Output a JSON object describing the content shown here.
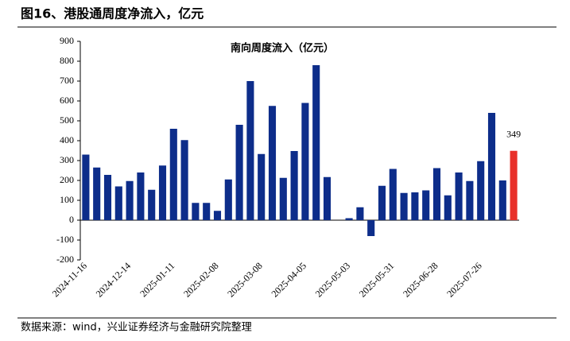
{
  "header": {
    "title": "图16、港股通周度净流入，亿元"
  },
  "chart_data": {
    "type": "bar",
    "title": "南向周度流入（亿元）",
    "categories": [
      "2024-11-16",
      null,
      null,
      null,
      "2024-12-14",
      null,
      null,
      null,
      "2025-01-11",
      null,
      null,
      null,
      "2025-02-08",
      null,
      null,
      null,
      "2025-03-08",
      null,
      null,
      null,
      "2025-04-05",
      null,
      null,
      null,
      "2025-05-03",
      null,
      null,
      null,
      "2025-05-31",
      null,
      null,
      null,
      "2025-06-28",
      null,
      null,
      null,
      "2025-07-26",
      null,
      null,
      null
    ],
    "values": [
      330,
      265,
      228,
      170,
      197,
      240,
      153,
      275,
      460,
      403,
      87,
      87,
      47,
      205,
      480,
      700,
      333,
      575,
      213,
      348,
      590,
      780,
      217,
      null,
      10,
      65,
      -80,
      173,
      258,
      137,
      140,
      150,
      262,
      125,
      240,
      197,
      297,
      540,
      200,
      349
    ],
    "value_labels": [
      null,
      null,
      null,
      null,
      null,
      null,
      null,
      null,
      null,
      null,
      null,
      null,
      null,
      null,
      null,
      null,
      null,
      null,
      null,
      null,
      null,
      null,
      null,
      null,
      null,
      null,
      null,
      null,
      null,
      null,
      null,
      null,
      null,
      null,
      null,
      null,
      null,
      null,
      null,
      "349"
    ],
    "colors": [
      "#0d2d8a",
      "#0d2d8a",
      "#0d2d8a",
      "#0d2d8a",
      "#0d2d8a",
      "#0d2d8a",
      "#0d2d8a",
      "#0d2d8a",
      "#0d2d8a",
      "#0d2d8a",
      "#0d2d8a",
      "#0d2d8a",
      "#0d2d8a",
      "#0d2d8a",
      "#0d2d8a",
      "#0d2d8a",
      "#0d2d8a",
      "#0d2d8a",
      "#0d2d8a",
      "#0d2d8a",
      "#0d2d8a",
      "#0d2d8a",
      "#0d2d8a",
      "#0d2d8a",
      "#0d2d8a",
      "#0d2d8a",
      "#0d2d8a",
      "#0d2d8a",
      "#0d2d8a",
      "#0d2d8a",
      "#0d2d8a",
      "#0d2d8a",
      "#0d2d8a",
      "#0d2d8a",
      "#0d2d8a",
      "#0d2d8a",
      "#0d2d8a",
      "#0d2d8a",
      "#0d2d8a",
      "#e8302a"
    ],
    "ylim": [
      -200,
      900
    ],
    "yticks": [
      -200,
      -100,
      0,
      100,
      200,
      300,
      400,
      500,
      600,
      700,
      800,
      900
    ],
    "grid": false
  },
  "footer": {
    "source": "数据来源：wind，兴业证券经济与金融研究院整理"
  }
}
